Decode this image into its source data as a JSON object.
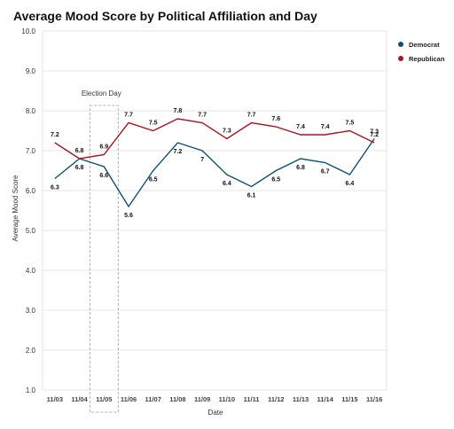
{
  "chart_data": {
    "type": "line",
    "title": "Average Mood Score by Political Affiliation and Day",
    "xlabel": "Date",
    "ylabel": "Average Mood Score",
    "ylim": [
      1.0,
      10.0
    ],
    "yticks": [
      "1.0",
      "2.0",
      "3.0",
      "4.0",
      "5.0",
      "6.0",
      "7.0",
      "8.0",
      "9.0",
      "10.0"
    ],
    "categories": [
      "11/03",
      "11/04",
      "11/05",
      "11/06",
      "11/07",
      "11/08",
      "11/09",
      "11/10",
      "11/11",
      "11/12",
      "11/13",
      "11/14",
      "11/15",
      "11/16"
    ],
    "series": [
      {
        "name": "Democrat",
        "color": "#0b4f7c",
        "values": [
          6.3,
          6.8,
          6.6,
          5.6,
          6.5,
          7.2,
          7.0,
          6.4,
          6.1,
          6.5,
          6.8,
          6.7,
          6.4,
          7.3
        ]
      },
      {
        "name": "Republican",
        "color": "#b0131d",
        "values": [
          7.2,
          6.8,
          6.9,
          7.7,
          7.5,
          7.8,
          7.7,
          7.3,
          7.7,
          7.6,
          7.4,
          7.4,
          7.5,
          7.2
        ]
      }
    ],
    "legend_position": "top-right",
    "grid": "horizontal",
    "annotation": {
      "label": "Election Day",
      "category": "11/05"
    }
  }
}
